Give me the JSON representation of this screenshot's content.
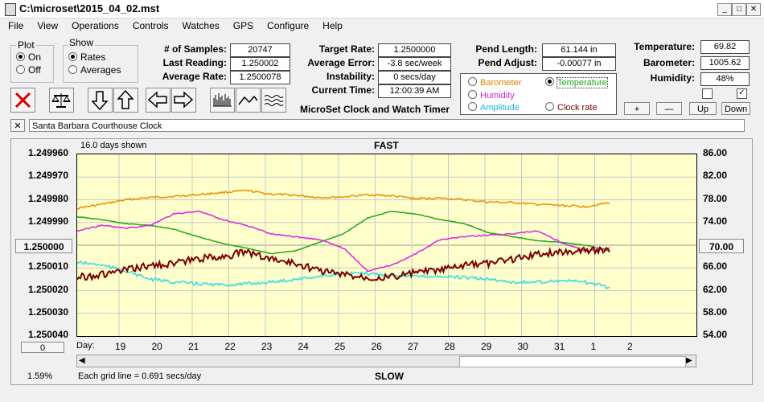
{
  "window": {
    "title": "C:\\microset\\2015_04_02.mst"
  },
  "menu": [
    "File",
    "View",
    "Operations",
    "Controls",
    "Watches",
    "GPS",
    "Configure",
    "Help"
  ],
  "plot_group": {
    "title": "Plot",
    "on": "On",
    "off": "Off",
    "selected": "On"
  },
  "show_group": {
    "title": "Show",
    "rates": "Rates",
    "averages": "Averages",
    "selected": "Rates"
  },
  "stats": {
    "samples_label": "# of Samples:",
    "samples": "20747",
    "last_label": "Last Reading:",
    "last": "1.250002",
    "avg_rate_label": "Average Rate:",
    "avg_rate": "1.2500078",
    "target_label": "Target Rate:",
    "target": "1.2500000",
    "avg_err_label": "Average Error:",
    "avg_err": "-3.8 sec/week",
    "instab_label": "Instability:",
    "instab": "0 secs/day",
    "time_label": "Current Time:",
    "time": "12:00:39 AM",
    "pend_len_label": "Pend Length:",
    "pend_len": "61.144 in",
    "pend_adj_label": "Pend Adjust:",
    "pend_adj": "-0.00077 in",
    "temp_label": "Temperature:",
    "temp": "69.82",
    "baro_label": "Barometer:",
    "baro": "1005.62",
    "humid_label": "Humidity:",
    "humid": "48%"
  },
  "app_caption": "MicroSet Clock and Watch Timer",
  "series_select": {
    "barometer": "Barometer",
    "temperature": "Temperature",
    "humidity": "Humidity",
    "amplitude": "Amplitude",
    "clock_rate": "Clock rate",
    "selected": "Temperature"
  },
  "scale_buttons": {
    "plus": "+",
    "minus": "—",
    "up": "Up",
    "down": "Down"
  },
  "description": "Santa Barbara Courthouse Clock",
  "chart_header": {
    "days_shown": "16.0 days shown",
    "fast": "FAST",
    "slow": "SLOW",
    "grid_note": "Each grid line = 0.691 secs/day",
    "percent": "1.59%",
    "day_label": "Day:"
  },
  "center_buttons": {
    "left": "1.250000",
    "right": "70.00",
    "offset": "0"
  },
  "colors": {
    "barometer": "#f08c00",
    "temperature": "#1aa81a",
    "humidity": "#e020e0",
    "amplitude": "#30d8e8",
    "rate": "#7a0000",
    "plot_bg": "#ffffcc"
  },
  "chart_data": {
    "type": "line",
    "x_ticks": [
      "19",
      "20",
      "21",
      "22",
      "23",
      "24",
      "25",
      "26",
      "27",
      "28",
      "29",
      "30",
      "31",
      "1",
      "2"
    ],
    "y_left_ticks": [
      "1.249960",
      "1.249970",
      "1.249980",
      "1.249990",
      "1.250000",
      "1.250010",
      "1.250020",
      "1.250030",
      "1.250040"
    ],
    "y_right_ticks": [
      "86.00",
      "82.00",
      "78.00",
      "74.00",
      "70.00",
      "66.00",
      "62.00",
      "58.00",
      "54.00"
    ],
    "ylim_left": [
      1.24996,
      1.25004
    ],
    "ylim_right": [
      54,
      86
    ],
    "series": [
      {
        "name": "Barometer",
        "color": "#f08c00",
        "values": [
          76.5,
          77.2,
          78.0,
          78.4,
          78.6,
          78.9,
          79.3,
          79.6,
          79.0,
          78.8,
          78.4,
          78.5,
          78.9,
          78.7,
          78.2,
          78.3,
          78.0,
          77.6,
          77.5,
          77.2,
          77.0,
          76.8,
          77.5
        ]
      },
      {
        "name": "Temperature",
        "color": "#1aa81a",
        "values": [
          75.0,
          74.5,
          73.8,
          73.5,
          72.8,
          71.5,
          70.3,
          69.5,
          68.5,
          69.0,
          70.5,
          72.0,
          74.8,
          76.0,
          75.5,
          74.5,
          73.8,
          72.2,
          71.5,
          70.8,
          70.5,
          70.0,
          69.0
        ]
      },
      {
        "name": "Humidity",
        "color": "#e020e0",
        "values": [
          72.5,
          73.5,
          73.0,
          73.5,
          75.5,
          76.0,
          74.5,
          73.5,
          72.0,
          71.5,
          71.0,
          69.5,
          65.5,
          66.5,
          68.5,
          71.0,
          71.5,
          71.8,
          72.0,
          72.5,
          70.5,
          69.0,
          69.5
        ]
      },
      {
        "name": "Amplitude",
        "color": "#30d8e8",
        "values": [
          67.0,
          66.5,
          65.5,
          64.0,
          63.5,
          63.2,
          63.0,
          63.2,
          63.5,
          64.0,
          64.5,
          65.0,
          65.0,
          64.8,
          64.5,
          64.5,
          64.3,
          64.0,
          63.5,
          63.5,
          63.8,
          63.5,
          62.5
        ]
      },
      {
        "name": "Clock rate",
        "color": "#7a0000",
        "values": [
          1.250014,
          1.250013,
          1.250011,
          1.250009,
          1.250008,
          1.250006,
          1.250005,
          1.250003,
          1.250006,
          1.250008,
          1.250011,
          1.250013,
          1.250014,
          1.250014,
          1.250012,
          1.250011,
          1.250009,
          1.250008,
          1.250006,
          1.250004,
          1.250003,
          1.250002,
          1.250002
        ]
      }
    ]
  }
}
